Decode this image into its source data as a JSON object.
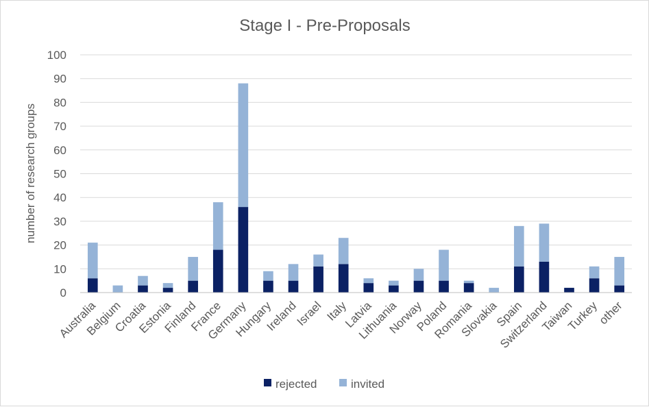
{
  "chart_data": {
    "type": "bar",
    "stacked": true,
    "title": "Stage I - Pre-Proposals",
    "xlabel": "",
    "ylabel": "number of research groups",
    "ylim": [
      0,
      100
    ],
    "yticks": [
      0,
      10,
      20,
      30,
      40,
      50,
      60,
      70,
      80,
      90,
      100
    ],
    "grid": true,
    "legend_position": "bottom",
    "categories": [
      "Australia",
      "Belgium",
      "Croatia",
      "Estonia",
      "Finland",
      "France",
      "Germany",
      "Hungary",
      "Ireland",
      "Israel",
      "Italy",
      "Latvia",
      "Lithuania",
      "Norway",
      "Poland",
      "Romania",
      "Slovakia",
      "Spain",
      "Switzerland",
      "Taiwan",
      "Turkey",
      "other"
    ],
    "series": [
      {
        "name": "rejected",
        "color": "#0b2164",
        "values": [
          6,
          0,
          3,
          2,
          5,
          18,
          36,
          5,
          5,
          11,
          12,
          4,
          3,
          5,
          5,
          4,
          0,
          11,
          13,
          2,
          6,
          3
        ]
      },
      {
        "name": "invited",
        "color": "#95b3d7",
        "values": [
          15,
          3,
          4,
          2,
          10,
          20,
          52,
          4,
          7,
          5,
          11,
          2,
          2,
          5,
          13,
          1,
          2,
          17,
          16,
          0,
          5,
          12
        ]
      }
    ]
  }
}
